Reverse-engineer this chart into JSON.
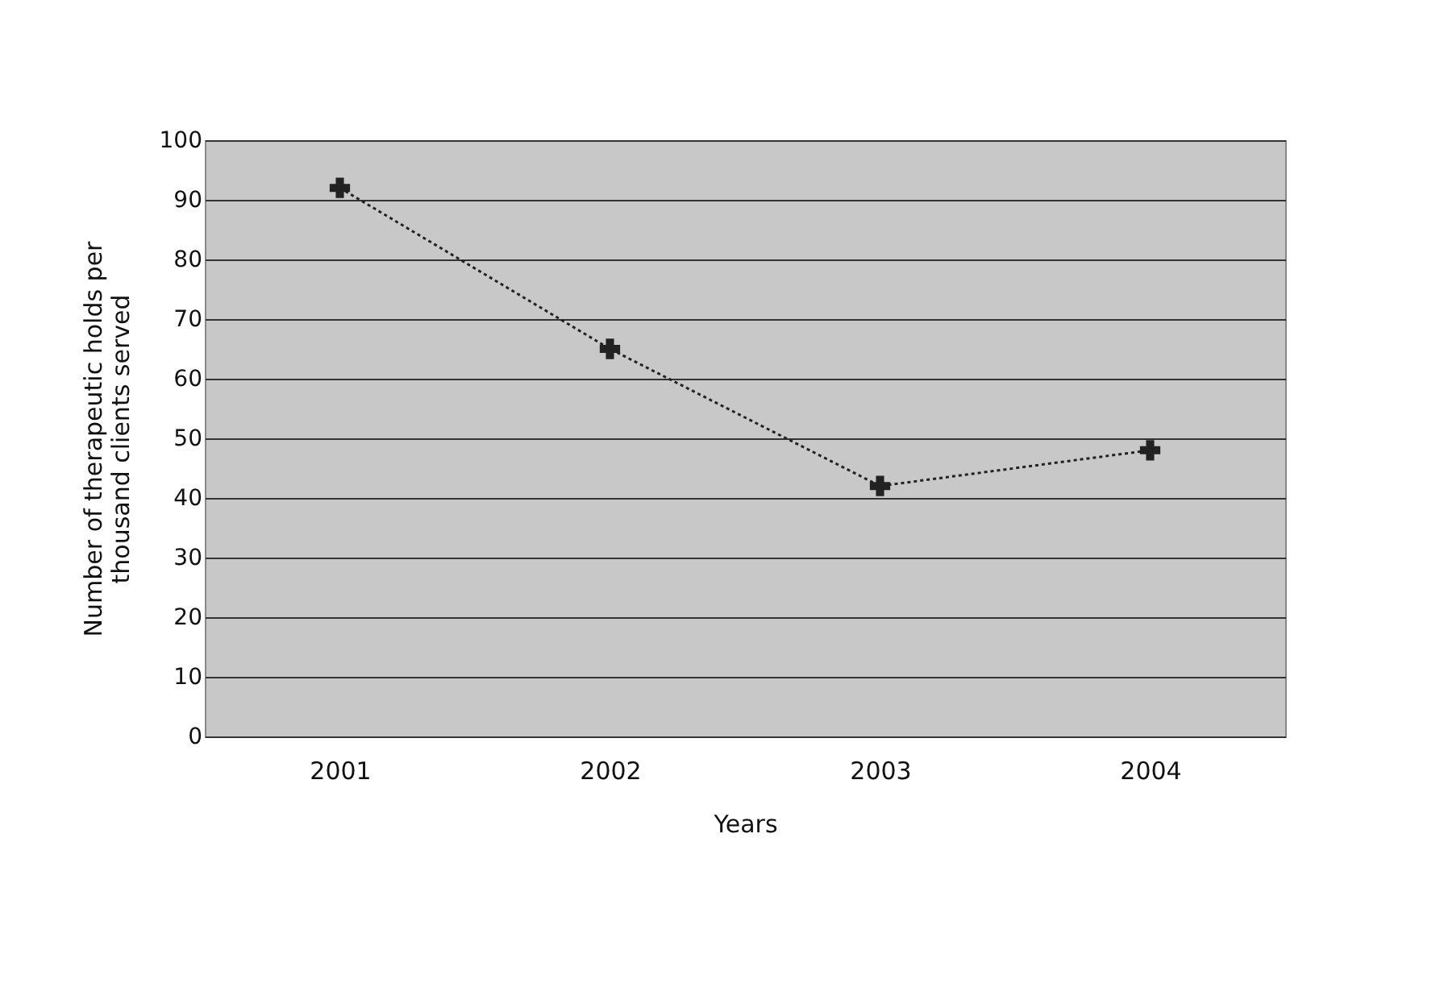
{
  "chart_data": {
    "type": "line",
    "xlabel": "Years",
    "ylabel": "Number of therapeutic holds per thousand clients served",
    "categories": [
      "2001",
      "2002",
      "2003",
      "2004"
    ],
    "series": [
      {
        "color": "#222222",
        "values": [
          92,
          65,
          42,
          48
        ]
      }
    ],
    "ylim": [
      0,
      100
    ],
    "yticks": [
      0,
      10,
      20,
      30,
      40,
      50,
      60,
      70,
      80,
      90,
      100
    ],
    "grid": "y",
    "marker": "cross",
    "line_style": "dotted"
  }
}
